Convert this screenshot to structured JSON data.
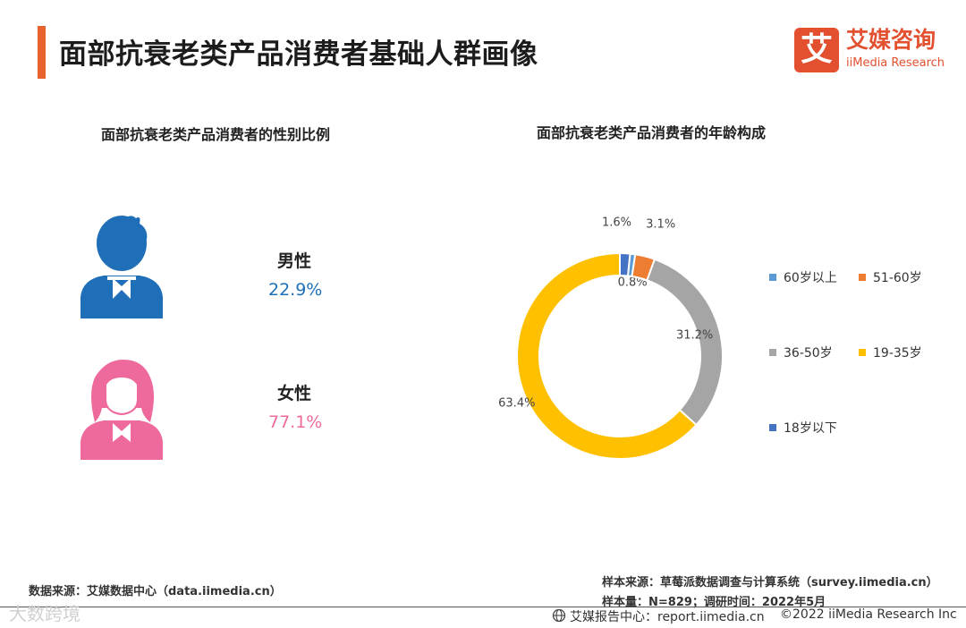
{
  "page": {
    "title": "面部抗衰老类产品消费者基础人群画像",
    "accent_color": "#e8632b"
  },
  "logo": {
    "mark": "艾",
    "name_cn": "艾媒咨询",
    "name_en": "iiMedia Research",
    "color": "#e3502f"
  },
  "gender_panel": {
    "title": "面部抗衰老类产品消费者的性别比例",
    "male": {
      "label": "男性",
      "value": "22.9%",
      "color": "#1f6fb8",
      "icon": "male-user-icon"
    },
    "female": {
      "label": "女性",
      "value": "77.1%",
      "color": "#ef6a9c",
      "icon": "female-user-icon"
    }
  },
  "chart_data": {
    "type": "donut",
    "title": "面部抗衰老类产品消费者的年龄构成",
    "slices": [
      {
        "label": "18岁以下",
        "value": 1.6,
        "display": "1.6%",
        "color": "#4472c4"
      },
      {
        "label": "60岁以上",
        "value": 0.8,
        "display": "0.8%",
        "color": "#5b9bd5"
      },
      {
        "label": "51-60岁",
        "value": 3.1,
        "display": "3.1%",
        "color": "#ed7d31"
      },
      {
        "label": "36-50岁",
        "value": 31.2,
        "display": "31.2%",
        "color": "#a5a5a5"
      },
      {
        "label": "19-35岁",
        "value": 63.4,
        "display": "63.4%",
        "color": "#ffc000"
      }
    ],
    "legend_order": [
      "60岁以上",
      "51-60岁",
      "36-50岁",
      "19-35岁",
      "18岁以下"
    ],
    "legend_position": "right"
  },
  "notes": {
    "data_source": "数据来源：艾媒数据中心（data.iimedia.cn）",
    "sample_source": "样本来源：草莓派数据调查与计算系统（survey.iimedia.cn）",
    "sample_size": "样本量：N=829；调研时间：2022年5月"
  },
  "footer": {
    "report_center": "艾媒报告中心：report.iimedia.cn",
    "copyright": "©2022  iiMedia Research  Inc",
    "icon": "globe-icon",
    "watermark": "大数跨境"
  }
}
